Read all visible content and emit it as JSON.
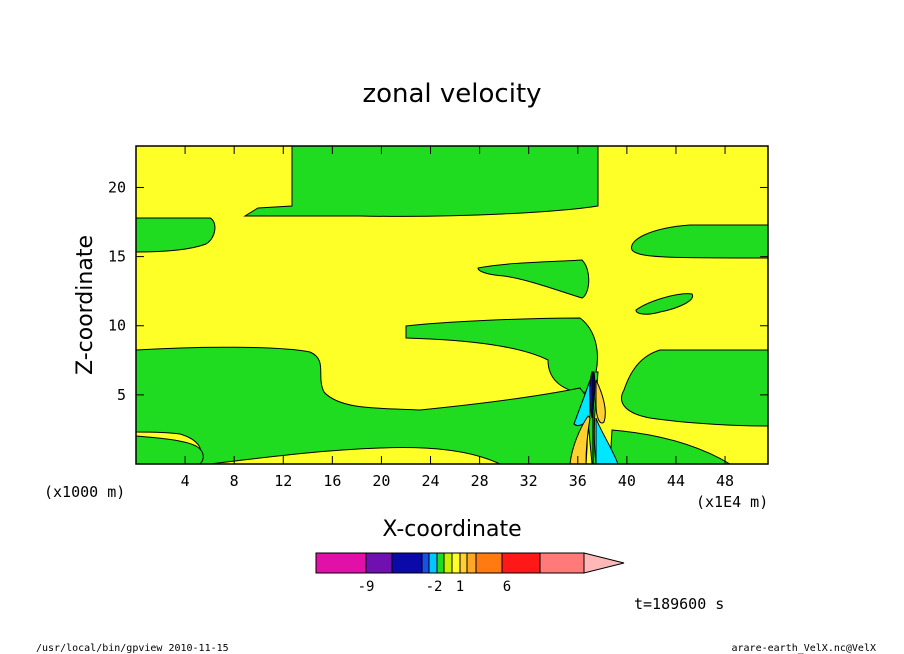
{
  "chart_data": {
    "type": "heatmap",
    "title": "zonal velocity",
    "xlabel": "X-coordinate",
    "ylabel": "Z-coordinate",
    "x_unit_left": "(x1000 m)",
    "x_unit_right": "(x1E4 m)",
    "xlim": [
      0,
      51.5
    ],
    "ylim": [
      0,
      23
    ],
    "x_ticks": [
      4,
      8,
      12,
      16,
      20,
      24,
      28,
      32,
      36,
      40,
      44,
      48
    ],
    "y_ticks": [
      5,
      10,
      15,
      20
    ],
    "colorbar": {
      "tick_labels": [
        {
          "value": -9,
          "text": "-9"
        },
        {
          "value": -2,
          "text": "-2"
        },
        {
          "value": 1,
          "text": "1"
        },
        {
          "value": 6,
          "text": "6"
        }
      ],
      "bins": [
        {
          "color": "#e010a8",
          "lo": -12,
          "hi": -10
        },
        {
          "color": "#7010b0",
          "lo": -10,
          "hi": -8
        },
        {
          "color": "#0a0aa8",
          "lo": -8,
          "hi": -6
        },
        {
          "color": "#1850e8",
          "lo": -6,
          "hi": -4
        },
        {
          "color": "#00c8ff",
          "lo": -4,
          "hi": -2
        },
        {
          "color": "#20dc20",
          "lo": -2,
          "hi": 0
        },
        {
          "color": "#c8f000",
          "lo": 0,
          "hi": 1
        },
        {
          "color": "#ffff28",
          "lo": 1,
          "hi": 2
        },
        {
          "color": "#ffd030",
          "lo": 2,
          "hi": 3
        },
        {
          "color": "#ffa828",
          "lo": 3,
          "hi": 4
        },
        {
          "color": "#ff7a10",
          "lo": 4,
          "hi": 6
        },
        {
          "color": "#ff1818",
          "lo": 6,
          "hi": 9
        },
        {
          "color": "#ff7a78",
          "lo": 9,
          "hi": 12
        },
        {
          "color": "#ffb8b8",
          "lo": 12,
          "hi": 15
        }
      ]
    },
    "time_label": "t=189600 s",
    "footer_left": "/usr/local/bin/gpview  2010-11-15",
    "footer_right": "arare-earth_VelX.nc@VelX"
  },
  "colors": {
    "positive": "#ffff28",
    "negative": "#20dc20",
    "strong_negative": "#00e8ff",
    "strong_positive": "#ffd030"
  }
}
